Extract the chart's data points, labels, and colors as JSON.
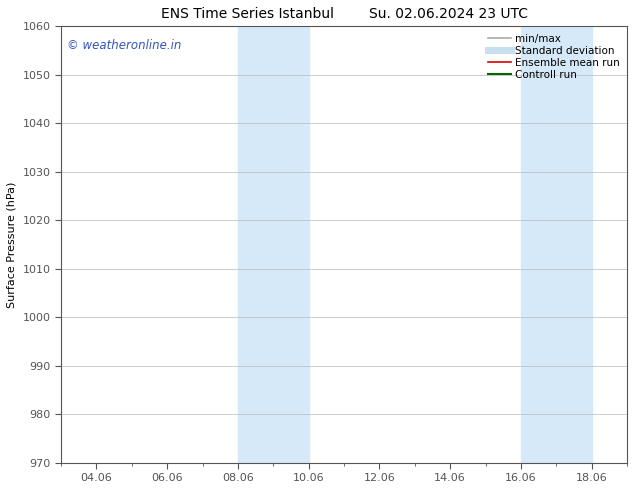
{
  "title_left": "ENS Time Series Istanbul",
  "title_right": "Su. 02.06.2024 23 UTC",
  "ylabel": "Surface Pressure (hPa)",
  "ylim": [
    970,
    1060
  ],
  "yticks": [
    970,
    980,
    990,
    1000,
    1010,
    1020,
    1030,
    1040,
    1050,
    1060
  ],
  "xlim": [
    0,
    16
  ],
  "xtick_labels": [
    "04.06",
    "06.06",
    "08.06",
    "10.06",
    "12.06",
    "14.06",
    "16.06",
    "18.06"
  ],
  "xtick_positions": [
    1,
    3,
    5,
    7,
    9,
    11,
    13,
    15
  ],
  "shaded_regions": [
    {
      "xmin": 5.0,
      "xmax": 7.0
    },
    {
      "xmin": 13.0,
      "xmax": 15.0
    }
  ],
  "shade_color": "#d6e9f8",
  "watermark_text": "© weatheronline.in",
  "watermark_color": "#3355bb",
  "watermark_fontsize": 8.5,
  "legend_items": [
    {
      "label": "min/max",
      "color": "#aaaaaa",
      "lw": 1.2
    },
    {
      "label": "Standard deviation",
      "color": "#c8dff0",
      "lw": 5
    },
    {
      "label": "Ensemble mean run",
      "color": "#dd0000",
      "lw": 1.2
    },
    {
      "label": "Controll run",
      "color": "#006600",
      "lw": 1.5
    }
  ],
  "title_fontsize": 10,
  "ylabel_fontsize": 8,
  "tick_fontsize": 8,
  "legend_fontsize": 7.5,
  "bg_color": "#ffffff",
  "grid_color": "#bbbbbb",
  "grid_linewidth": 0.5,
  "spine_color": "#555555",
  "spine_linewidth": 0.8
}
